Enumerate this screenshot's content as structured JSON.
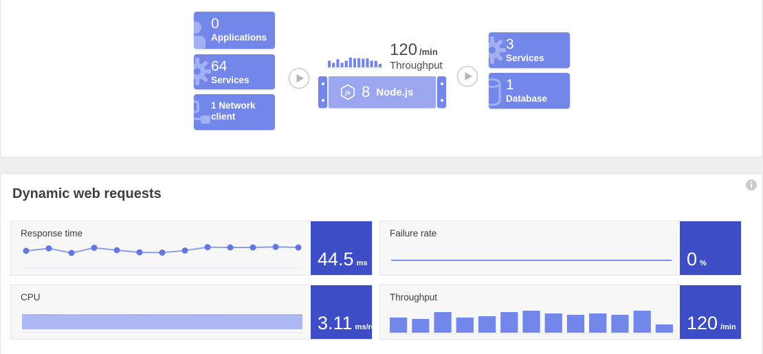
{
  "colors": {
    "accent_box": "#7287e9",
    "box_icon": "#a3b0f2",
    "node_center": "#9aa7ee",
    "value_block": "#3d4dc6",
    "bar_blue": "#7386e9",
    "line_blue": "#8d9ded",
    "dot_blue": "#6277e3",
    "flat_line_blue": "#5b6fe3",
    "area_fill": "#adb8f2",
    "baseline": "#e7eaf9",
    "arrow_gray": "#b5b5b5",
    "info_gray": "#cbcbcb"
  },
  "icons": {
    "applications": "user-silhouette",
    "services": "gear",
    "network_client": "network-nodes",
    "process": "nodejs-hexagon",
    "database": "database-cylinder",
    "flow_arrow": "play-circle",
    "info": "info-circle"
  },
  "flow": {
    "left_nodes": [
      {
        "count": "0",
        "label": "Applications"
      },
      {
        "count": "64",
        "label": "Services"
      },
      {
        "label": "1 Network client"
      }
    ],
    "throughput_badge": {
      "value": "120",
      "unit": "/min",
      "label": "Throughput"
    },
    "process_node": {
      "count": "8",
      "label": "Node.js"
    },
    "right_nodes": [
      {
        "count": "3",
        "label": "Services"
      },
      {
        "count": "1",
        "label": "Database"
      }
    ]
  },
  "section": {
    "title": "Dynamic web requests"
  },
  "cards": [
    {
      "label": "Response time",
      "value": "44.5",
      "unit": "ms"
    },
    {
      "label": "Failure rate",
      "value": "0",
      "unit": "%"
    },
    {
      "label": "CPU",
      "value": "3.11",
      "unit": "ms/req"
    },
    {
      "label": "Throughput",
      "value": "120",
      "unit": "/min"
    }
  ],
  "chart_data": [
    {
      "id": "flow-throughput-sparkline",
      "type": "bar",
      "title": "Throughput",
      "unit": "/min",
      "current": 120,
      "values": [
        115,
        80,
        140,
        80,
        115,
        170,
        155,
        160,
        150,
        155,
        115,
        115,
        60
      ],
      "ylim": [
        0,
        190
      ],
      "gap": 2,
      "baseline": true
    },
    {
      "id": "response-time",
      "type": "line",
      "title": "Response time",
      "unit": "ms",
      "current": 44.5,
      "values": [
        44.3,
        45.1,
        43.6,
        45.3,
        44.5,
        43.8,
        43.7,
        44.4,
        45.5,
        45.4,
        45.4,
        45.6,
        45.4
      ],
      "ylim": [
        42,
        47
      ]
    },
    {
      "id": "failure-rate",
      "type": "flat-line",
      "title": "Failure rate",
      "unit": "%",
      "current": 0,
      "values": [
        0,
        0,
        0,
        0,
        0,
        0,
        0,
        0,
        0,
        0,
        0,
        0,
        0
      ],
      "ylim": [
        0,
        1
      ]
    },
    {
      "id": "cpu",
      "type": "area",
      "title": "CPU",
      "unit": "ms/req",
      "current": 3.11,
      "values": [
        3.1,
        3.12,
        3.09,
        3.11,
        3.1,
        3.13,
        3.11,
        3.1,
        3.12,
        3.1,
        3.11,
        3.1,
        3.11
      ],
      "ylim": [
        0,
        5
      ]
    },
    {
      "id": "throughput",
      "type": "bar",
      "title": "Throughput",
      "unit": "/min",
      "current": 120,
      "values": [
        110,
        100,
        150,
        110,
        120,
        150,
        160,
        140,
        130,
        140,
        130,
        160,
        60
      ],
      "ylim": [
        0,
        220
      ],
      "gap": 7,
      "baseline": true
    }
  ]
}
